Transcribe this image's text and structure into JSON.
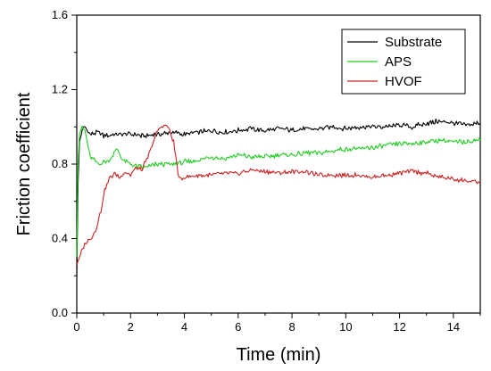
{
  "chart_data": {
    "type": "line",
    "title": "",
    "xlabel": "Time (min)",
    "ylabel": "Friction coefficient",
    "xlim": [
      0,
      15
    ],
    "ylim": [
      0,
      1.6
    ],
    "xticks": [
      0,
      2,
      4,
      6,
      8,
      10,
      12,
      14
    ],
    "yticks": [
      0.0,
      0.4,
      0.8,
      1.2,
      1.6
    ],
    "ytick_labels": [
      "0.0",
      "0.4",
      "0.8",
      "1.2",
      "1.6"
    ],
    "grid": false,
    "legend": "top-right",
    "series": [
      {
        "name": "Substrate",
        "color": "#000000",
        "points": [
          [
            0,
            0.2
          ],
          [
            0.05,
            0.7
          ],
          [
            0.1,
            0.92
          ],
          [
            0.2,
            0.98
          ],
          [
            0.3,
            1.0
          ],
          [
            0.5,
            0.96
          ],
          [
            0.8,
            0.97
          ],
          [
            1,
            0.95
          ],
          [
            1.5,
            0.96
          ],
          [
            2,
            0.96
          ],
          [
            2.5,
            0.95
          ],
          [
            3,
            0.96
          ],
          [
            3.5,
            0.97
          ],
          [
            4,
            0.96
          ],
          [
            4.5,
            0.97
          ],
          [
            5,
            0.98
          ],
          [
            5.5,
            0.97
          ],
          [
            6,
            0.98
          ],
          [
            6.5,
            0.99
          ],
          [
            7,
            0.98
          ],
          [
            7.5,
            0.99
          ],
          [
            8,
            0.98
          ],
          [
            8.5,
            0.99
          ],
          [
            9,
            0.99
          ],
          [
            9.5,
            1.0
          ],
          [
            10,
            0.99
          ],
          [
            10.5,
            1.0
          ],
          [
            11,
            1.0
          ],
          [
            11.5,
            1.0
          ],
          [
            12,
            1.01
          ],
          [
            12.5,
            1.0
          ],
          [
            13,
            1.02
          ],
          [
            13.5,
            1.03
          ],
          [
            14,
            1.02
          ],
          [
            14.5,
            1.01
          ],
          [
            15,
            1.02
          ]
        ]
      },
      {
        "name": "APS",
        "color": "#22cc22",
        "points": [
          [
            0,
            0.3
          ],
          [
            0.05,
            0.8
          ],
          [
            0.1,
            0.96
          ],
          [
            0.2,
            1.0
          ],
          [
            0.3,
            0.98
          ],
          [
            0.5,
            0.84
          ],
          [
            0.8,
            0.8
          ],
          [
            1.2,
            0.82
          ],
          [
            1.5,
            0.88
          ],
          [
            1.7,
            0.82
          ],
          [
            2,
            0.8
          ],
          [
            2.5,
            0.78
          ],
          [
            3,
            0.8
          ],
          [
            3.5,
            0.8
          ],
          [
            4,
            0.81
          ],
          [
            4.5,
            0.82
          ],
          [
            5,
            0.84
          ],
          [
            5.5,
            0.83
          ],
          [
            6,
            0.85
          ],
          [
            6.5,
            0.84
          ],
          [
            7,
            0.84
          ],
          [
            7.5,
            0.85
          ],
          [
            8,
            0.85
          ],
          [
            8.5,
            0.86
          ],
          [
            9,
            0.86
          ],
          [
            9.5,
            0.87
          ],
          [
            10,
            0.88
          ],
          [
            10.5,
            0.88
          ],
          [
            11,
            0.89
          ],
          [
            11.5,
            0.9
          ],
          [
            12,
            0.91
          ],
          [
            12.5,
            0.91
          ],
          [
            13,
            0.92
          ],
          [
            13.5,
            0.93
          ],
          [
            14,
            0.92
          ],
          [
            14.5,
            0.92
          ],
          [
            15,
            0.93
          ]
        ]
      },
      {
        "name": "HVOF",
        "color": "#cc2222",
        "points": [
          [
            0,
            0.26
          ],
          [
            0.1,
            0.3
          ],
          [
            0.3,
            0.37
          ],
          [
            0.5,
            0.4
          ],
          [
            0.7,
            0.44
          ],
          [
            0.9,
            0.55
          ],
          [
            1,
            0.64
          ],
          [
            1.2,
            0.72
          ],
          [
            1.4,
            0.75
          ],
          [
            1.6,
            0.73
          ],
          [
            1.8,
            0.76
          ],
          [
            2,
            0.74
          ],
          [
            2.2,
            0.78
          ],
          [
            2.4,
            0.77
          ],
          [
            2.6,
            0.82
          ],
          [
            2.8,
            0.9
          ],
          [
            3,
            0.98
          ],
          [
            3.2,
            1.01
          ],
          [
            3.4,
            1.0
          ],
          [
            3.6,
            0.92
          ],
          [
            3.8,
            0.72
          ],
          [
            4,
            0.73
          ],
          [
            4.5,
            0.74
          ],
          [
            5,
            0.74
          ],
          [
            5.5,
            0.75
          ],
          [
            6,
            0.75
          ],
          [
            6.5,
            0.77
          ],
          [
            7,
            0.76
          ],
          [
            7.5,
            0.75
          ],
          [
            8,
            0.76
          ],
          [
            8.5,
            0.76
          ],
          [
            9,
            0.74
          ],
          [
            9.5,
            0.74
          ],
          [
            10,
            0.74
          ],
          [
            10.5,
            0.74
          ],
          [
            11,
            0.73
          ],
          [
            11.5,
            0.74
          ],
          [
            12,
            0.75
          ],
          [
            12.5,
            0.76
          ],
          [
            13,
            0.75
          ],
          [
            13.5,
            0.73
          ],
          [
            14,
            0.72
          ],
          [
            14.5,
            0.71
          ],
          [
            15,
            0.7
          ]
        ]
      }
    ]
  }
}
